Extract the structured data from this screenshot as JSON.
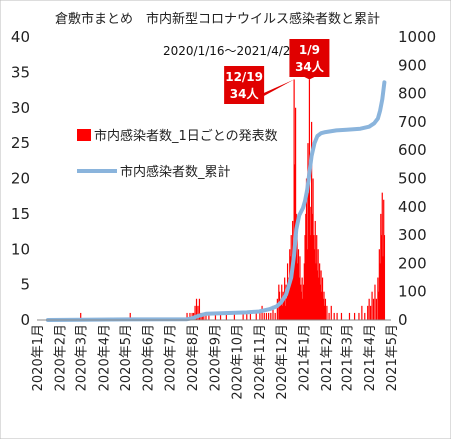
{
  "chart_data": {
    "type": "bar+line",
    "title": "倉敷市まとめ　市内新型コロナウイルス感染者数と累計",
    "subtitle": "2020/1/16〜2021/4/22",
    "left_axis": {
      "ylim": [
        0,
        40
      ],
      "ticks": [
        "0",
        "5",
        "10",
        "15",
        "20",
        "25",
        "30",
        "35",
        "40"
      ]
    },
    "right_axis": {
      "ylim": [
        0,
        1000
      ],
      "ticks": [
        "0",
        "100",
        "200",
        "300",
        "400",
        "500",
        "600",
        "700",
        "800",
        "900",
        "1000"
      ]
    },
    "x_axis": {
      "ticks": [
        "2020年1月",
        "2020年2月",
        "2020年3月",
        "2020年4月",
        "2020年5月",
        "2020年6月",
        "2020年7月",
        "2020年8月",
        "2020年9月",
        "2020年10月",
        "2020年11月",
        "2020年12月",
        "2021年1月",
        "2021年2月",
        "2021年3月",
        "2021年4月",
        "2021年5月"
      ]
    },
    "legend": {
      "placement": "left-middle"
    },
    "series": [
      {
        "name": "市内感染者数_1日ごとの発表数",
        "type": "bar",
        "color": "#ff0000",
        "axis": "left",
        "points": [
          [
            "2020-03-01",
            1
          ],
          [
            "2020-05-08",
            1
          ],
          [
            "2020-07-25",
            1
          ],
          [
            "2020-07-29",
            1
          ],
          [
            "2020-08-01",
            1
          ],
          [
            "2020-08-03",
            1
          ],
          [
            "2020-08-05",
            2
          ],
          [
            "2020-08-07",
            3
          ],
          [
            "2020-08-09",
            2
          ],
          [
            "2020-08-11",
            3
          ],
          [
            "2020-08-13",
            1
          ],
          [
            "2020-08-15",
            1
          ],
          [
            "2020-08-17",
            1
          ],
          [
            "2020-08-20",
            1
          ],
          [
            "2020-08-24",
            1
          ],
          [
            "2020-09-02",
            1
          ],
          [
            "2020-09-09",
            1
          ],
          [
            "2020-09-17",
            1
          ],
          [
            "2020-09-28",
            1
          ],
          [
            "2020-10-10",
            1
          ],
          [
            "2020-10-15",
            1
          ],
          [
            "2020-10-20",
            1
          ],
          [
            "2020-10-28",
            1
          ],
          [
            "2020-11-02",
            1
          ],
          [
            "2020-11-05",
            2
          ],
          [
            "2020-11-08",
            1
          ],
          [
            "2020-11-11",
            1
          ],
          [
            "2020-11-14",
            1
          ],
          [
            "2020-11-17",
            1
          ],
          [
            "2020-11-20",
            2
          ],
          [
            "2020-11-23",
            1
          ],
          [
            "2020-11-26",
            3
          ],
          [
            "2020-11-28",
            5
          ],
          [
            "2020-11-29",
            4
          ],
          [
            "2020-11-30",
            2
          ],
          [
            "2020-12-01",
            3
          ],
          [
            "2020-12-02",
            5
          ],
          [
            "2020-12-03",
            2
          ],
          [
            "2020-12-04",
            4
          ],
          [
            "2020-12-05",
            3
          ],
          [
            "2020-12-06",
            6
          ],
          [
            "2020-12-07",
            2
          ],
          [
            "2020-12-08",
            5
          ],
          [
            "2020-12-09",
            3
          ],
          [
            "2020-12-10",
            8
          ],
          [
            "2020-12-11",
            4
          ],
          [
            "2020-12-12",
            6
          ],
          [
            "2020-12-13",
            10
          ],
          [
            "2020-12-14",
            9
          ],
          [
            "2020-12-15",
            12
          ],
          [
            "2020-12-16",
            8
          ],
          [
            "2020-12-17",
            14
          ],
          [
            "2020-12-18",
            10
          ],
          [
            "2020-12-19",
            34
          ],
          [
            "2020-12-20",
            22
          ],
          [
            "2020-12-21",
            30
          ],
          [
            "2020-12-22",
            15
          ],
          [
            "2020-12-23",
            12
          ],
          [
            "2020-12-24",
            8
          ],
          [
            "2020-12-25",
            10
          ],
          [
            "2020-12-26",
            6
          ],
          [
            "2020-12-27",
            9
          ],
          [
            "2020-12-28",
            5
          ],
          [
            "2020-12-29",
            4
          ],
          [
            "2020-12-30",
            6
          ],
          [
            "2020-12-31",
            3
          ],
          [
            "2021-01-01",
            5
          ],
          [
            "2021-01-02",
            8
          ],
          [
            "2021-01-03",
            12
          ],
          [
            "2021-01-04",
            15
          ],
          [
            "2021-01-05",
            20
          ],
          [
            "2021-01-06",
            10
          ],
          [
            "2021-01-07",
            25
          ],
          [
            "2021-01-08",
            18
          ],
          [
            "2021-01-09",
            34
          ],
          [
            "2021-01-10",
            16
          ],
          [
            "2021-01-11",
            12
          ],
          [
            "2021-01-12",
            28
          ],
          [
            "2021-01-13",
            15
          ],
          [
            "2021-01-14",
            20
          ],
          [
            "2021-01-15",
            12
          ],
          [
            "2021-01-16",
            10
          ],
          [
            "2021-01-17",
            14
          ],
          [
            "2021-01-18",
            8
          ],
          [
            "2021-01-19",
            12
          ],
          [
            "2021-01-20",
            7
          ],
          [
            "2021-01-21",
            10
          ],
          [
            "2021-01-22",
            6
          ],
          [
            "2021-01-23",
            8
          ],
          [
            "2021-01-24",
            5
          ],
          [
            "2021-01-25",
            7
          ],
          [
            "2021-01-26",
            4
          ],
          [
            "2021-01-27",
            6
          ],
          [
            "2021-01-28",
            3
          ],
          [
            "2021-01-29",
            4
          ],
          [
            "2021-01-30",
            2
          ],
          [
            "2021-01-31",
            3
          ],
          [
            "2021-02-02",
            2
          ],
          [
            "2021-02-05",
            1
          ],
          [
            "2021-02-08",
            2
          ],
          [
            "2021-02-12",
            1
          ],
          [
            "2021-02-16",
            1
          ],
          [
            "2021-02-22",
            1
          ],
          [
            "2021-03-05",
            1
          ],
          [
            "2021-03-12",
            1
          ],
          [
            "2021-03-18",
            1
          ],
          [
            "2021-03-22",
            2
          ],
          [
            "2021-03-26",
            1
          ],
          [
            "2021-03-30",
            2
          ],
          [
            "2021-04-01",
            3
          ],
          [
            "2021-04-03",
            2
          ],
          [
            "2021-04-05",
            4
          ],
          [
            "2021-04-07",
            3
          ],
          [
            "2021-04-09",
            5
          ],
          [
            "2021-04-11",
            3
          ],
          [
            "2021-04-13",
            6
          ],
          [
            "2021-04-14",
            4
          ],
          [
            "2021-04-15",
            10
          ],
          [
            "2021-04-16",
            8
          ],
          [
            "2021-04-17",
            15
          ],
          [
            "2021-04-18",
            12
          ],
          [
            "2021-04-19",
            18
          ],
          [
            "2021-04-20",
            9
          ],
          [
            "2021-04-21",
            17
          ],
          [
            "2021-04-22",
            12
          ]
        ]
      },
      {
        "name": "市内感染者数_累計",
        "type": "line",
        "color": "#8ab4dc",
        "axis": "right",
        "points": [
          [
            "2020-01-16",
            0
          ],
          [
            "2020-03-01",
            1
          ],
          [
            "2020-05-08",
            2
          ],
          [
            "2020-07-25",
            3
          ],
          [
            "2020-08-01",
            6
          ],
          [
            "2020-08-10",
            15
          ],
          [
            "2020-08-20",
            22
          ],
          [
            "2020-09-10",
            24
          ],
          [
            "2020-10-15",
            27
          ],
          [
            "2020-11-01",
            30
          ],
          [
            "2020-11-15",
            38
          ],
          [
            "2020-11-25",
            48
          ],
          [
            "2020-12-01",
            62
          ],
          [
            "2020-12-08",
            90
          ],
          [
            "2020-12-15",
            150
          ],
          [
            "2020-12-19",
            230
          ],
          [
            "2020-12-22",
            320
          ],
          [
            "2020-12-26",
            370
          ],
          [
            "2020-12-31",
            395
          ],
          [
            "2021-01-03",
            420
          ],
          [
            "2021-01-06",
            460
          ],
          [
            "2021-01-09",
            520
          ],
          [
            "2021-01-12",
            580
          ],
          [
            "2021-01-16",
            625
          ],
          [
            "2021-01-20",
            650
          ],
          [
            "2021-01-25",
            660
          ],
          [
            "2021-01-31",
            664
          ],
          [
            "2021-02-15",
            670
          ],
          [
            "2021-03-01",
            672
          ],
          [
            "2021-03-20",
            676
          ],
          [
            "2021-04-01",
            683
          ],
          [
            "2021-04-08",
            695
          ],
          [
            "2021-04-13",
            712
          ],
          [
            "2021-04-16",
            740
          ],
          [
            "2021-04-19",
            780
          ],
          [
            "2021-04-22",
            840
          ]
        ]
      }
    ],
    "annotations": [
      {
        "label_line1": "12/19",
        "label_line2": "34人",
        "date": "2020-12-19",
        "value": 34,
        "color": "#e00000"
      },
      {
        "label_line1": "1/9",
        "label_line2": "34人",
        "date": "2021-01-09",
        "value": 34,
        "color": "#e00000"
      }
    ]
  }
}
